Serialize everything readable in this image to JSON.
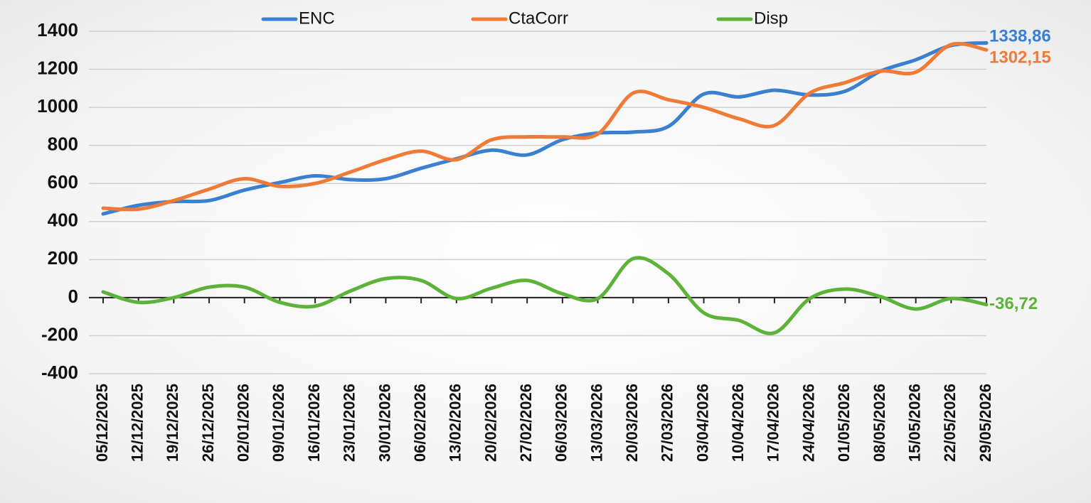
{
  "chart_data": {
    "type": "line",
    "categories": [
      "05/12/2025",
      "12/12/2025",
      "19/12/2025",
      "26/12/2025",
      "02/01/2026",
      "09/01/2026",
      "16/01/2026",
      "23/01/2026",
      "30/01/2026",
      "06/02/2026",
      "13/02/2026",
      "20/02/2026",
      "27/02/2026",
      "06/03/2026",
      "13/03/2026",
      "20/03/2026",
      "27/03/2026",
      "03/04/2026",
      "10/04/2026",
      "17/04/2026",
      "24/04/2026",
      "01/05/2026",
      "08/05/2026",
      "15/05/2026",
      "22/05/2026",
      "29/05/2026"
    ],
    "series": [
      {
        "name": "ENC",
        "color": "#3a7fd0",
        "values": [
          440,
          485,
          505,
          510,
          565,
          605,
          640,
          620,
          625,
          680,
          730,
          775,
          750,
          830,
          865,
          870,
          900,
          1070,
          1055,
          1090,
          1065,
          1085,
          1190,
          1250,
          1325,
          1338.86
        ],
        "value_labels": [
          null,
          null,
          null,
          null,
          null,
          null,
          null,
          null,
          null,
          null,
          null,
          null,
          null,
          null,
          null,
          null,
          null,
          null,
          null,
          null,
          null,
          null,
          null,
          null,
          null,
          "1338,86"
        ]
      },
      {
        "name": "CtaCorr",
        "color": "#f07a36",
        "values": [
          470,
          465,
          510,
          570,
          625,
          585,
          600,
          660,
          725,
          770,
          725,
          830,
          845,
          845,
          860,
          1075,
          1040,
          1000,
          940,
          905,
          1075,
          1130,
          1190,
          1185,
          1330,
          1302.15
        ],
        "value_labels": [
          null,
          null,
          null,
          null,
          null,
          null,
          null,
          null,
          null,
          null,
          null,
          null,
          null,
          null,
          null,
          null,
          null,
          null,
          null,
          null,
          null,
          null,
          null,
          null,
          null,
          "1302,15"
        ]
      },
      {
        "name": "Disp",
        "color": "#5db33a",
        "values": [
          30,
          -25,
          0,
          55,
          55,
          -25,
          -45,
          35,
          100,
          90,
          -5,
          50,
          90,
          20,
          -5,
          205,
          125,
          -80,
          -120,
          -185,
          -5,
          45,
          5,
          -60,
          -5,
          -36.72
        ],
        "value_labels": [
          null,
          null,
          null,
          null,
          null,
          null,
          null,
          null,
          null,
          null,
          null,
          null,
          null,
          null,
          null,
          null,
          null,
          null,
          null,
          null,
          null,
          null,
          null,
          null,
          null,
          "-36,72"
        ]
      }
    ],
    "ylim": [
      -400,
      1400
    ],
    "yticks": [
      -400,
      -200,
      0,
      200,
      400,
      600,
      800,
      1000,
      1200,
      1400
    ],
    "grid": true,
    "legend": "top"
  }
}
